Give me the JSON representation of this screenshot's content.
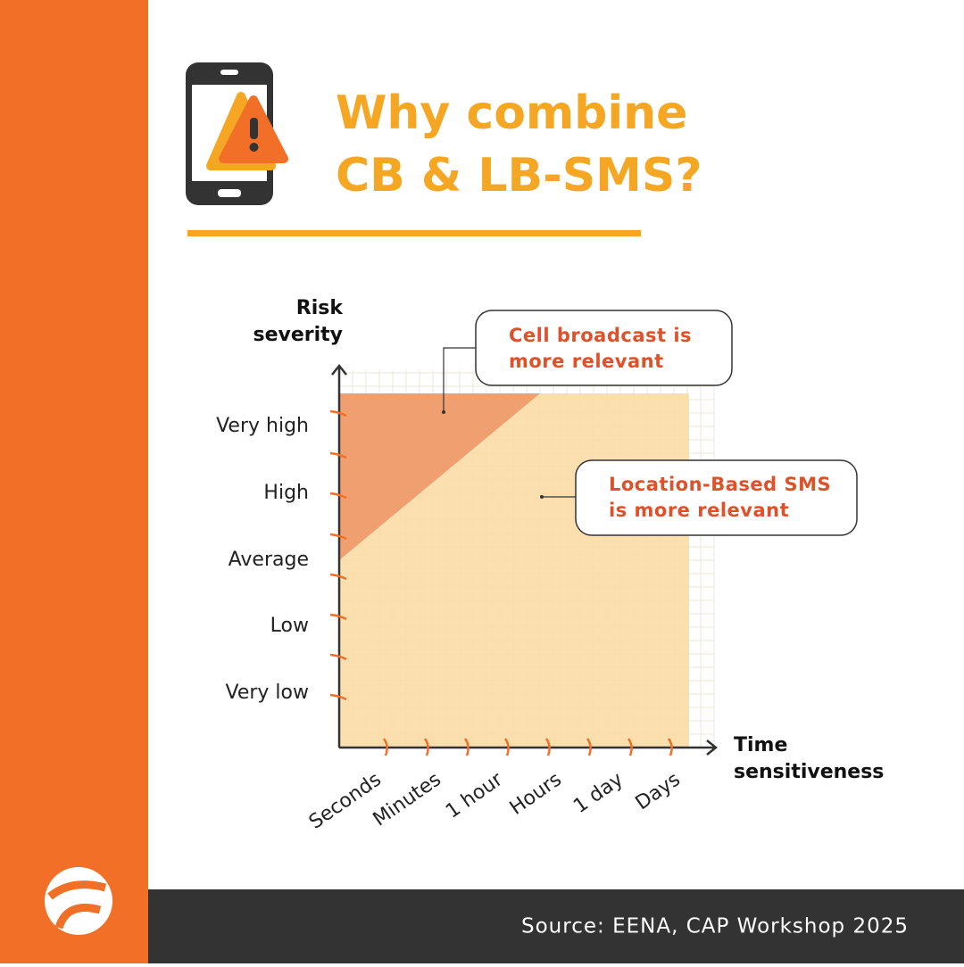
{
  "header": {
    "title_lines": [
      "Why combine",
      "CB & LB-SMS?"
    ]
  },
  "diagram": {
    "y_axis_label": [
      "Risk",
      "severity"
    ],
    "x_axis_label": [
      "Time",
      "sensitiveness"
    ],
    "y_categories": [
      "Very high",
      "High",
      "Average",
      "Low",
      "Very low"
    ],
    "x_categories": [
      "Seconds",
      "Minutes",
      "1 hour",
      "Hours",
      "1 day",
      "Days"
    ],
    "callouts": [
      {
        "lines": [
          "Cell broadcast is",
          "more relevant"
        ]
      },
      {
        "lines": [
          "Location-Based SMS",
          "is more relevant"
        ]
      }
    ]
  },
  "footer": {
    "source": "Source: EENA, CAP Workshop 2025"
  }
}
